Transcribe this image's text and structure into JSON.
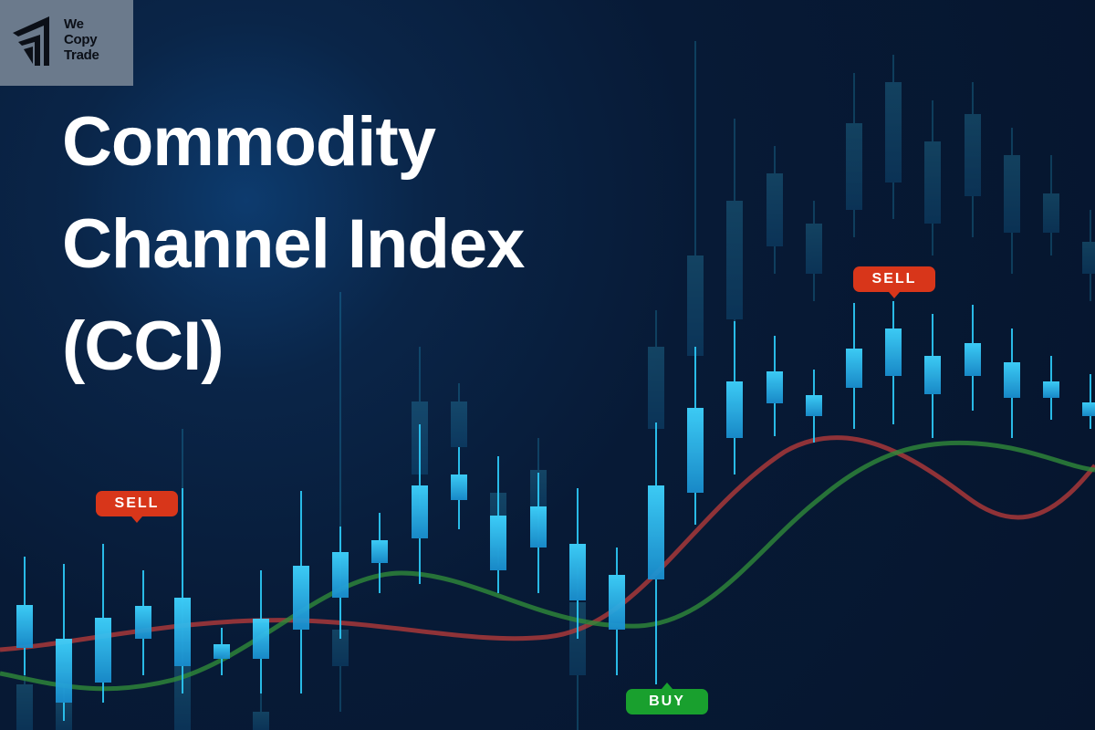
{
  "brand": {
    "logo_lines": [
      "We",
      "Copy",
      "Trade"
    ],
    "logo_icon": "arrow-chevrons-icon"
  },
  "title_lines": [
    "Commodity",
    "Channel Index",
    "(CCI)"
  ],
  "signals": {
    "sell_left": "SELL",
    "sell_right": "SELL",
    "buy": "BUY"
  },
  "colors": {
    "background": "#06152d",
    "candle": "#2bc3f0",
    "sell": "#d8361a",
    "buy": "#19a02e",
    "line_red": "#b23a3a",
    "line_green": "#2f8a3a"
  }
}
